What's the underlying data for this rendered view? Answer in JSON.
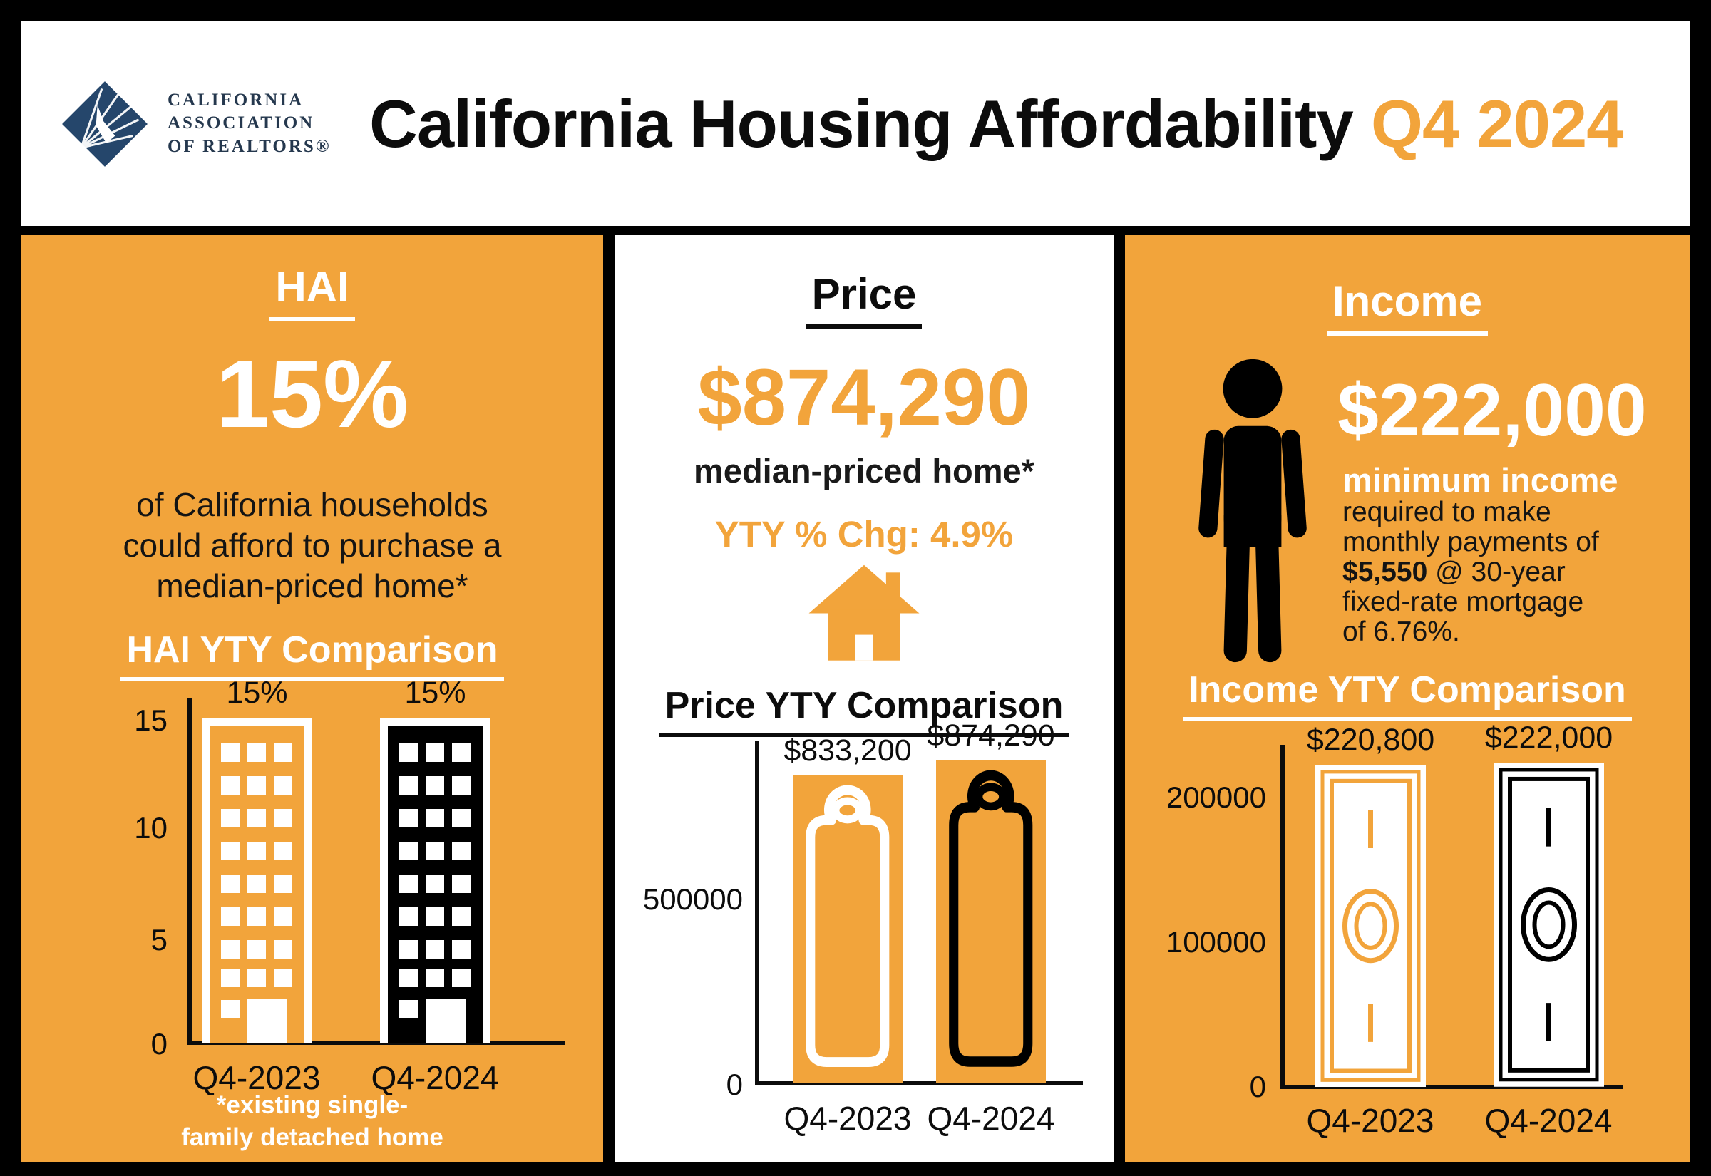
{
  "colors": {
    "orange": "#F2A43B",
    "black": "#000000",
    "white": "#FFFFFF",
    "navy": "#25384e"
  },
  "header": {
    "logo": {
      "lines": [
        "CALIFORNIA",
        "ASSOCIATION",
        "OF REALTORS®"
      ]
    },
    "title": "California Housing Affordability",
    "quarter": "Q4 2024"
  },
  "hai": {
    "title": "HAI",
    "big_value": "15%",
    "desc_lines": [
      "of California households",
      "could afford to purchase a",
      "median-priced home*"
    ],
    "footnote_lines": [
      "*existing single-",
      "family detached home"
    ]
  },
  "price": {
    "title": "Price",
    "big_value": "$874,290",
    "subtitle": "median-priced home*",
    "yty_change": "YTY % Chg: 4.9%"
  },
  "income": {
    "title": "Income",
    "big_value": "$222,000",
    "subtitle": "minimum income",
    "desc": {
      "l1": "required to make",
      "l2": "monthly payments of",
      "l3_bold": "$5,550",
      "l3_rest": " @ 30-year",
      "l4": "fixed-rate mortgage",
      "l5": "of 6.76%."
    }
  },
  "chart_data": [
    {
      "type": "bar",
      "title": "HAI YTY Comparison",
      "categories": [
        "Q4-2023",
        "Q4-2024"
      ],
      "values": [
        15,
        15
      ],
      "value_labels": [
        "15%",
        "15%"
      ],
      "yticks": [
        15,
        10,
        5,
        0
      ],
      "ylim": [
        0,
        15
      ],
      "axis_max": 15,
      "bar_icons": [
        "building-orange",
        "building-black"
      ],
      "legend": "none",
      "grid": false
    },
    {
      "type": "bar",
      "title": "Price YTY Comparison",
      "categories": [
        "Q4-2023",
        "Q4-2024"
      ],
      "values": [
        833200,
        874290
      ],
      "value_labels": [
        "$833,200",
        "$874,290"
      ],
      "yticks": [
        500000,
        0
      ],
      "ylim": [
        0,
        880000
      ],
      "axis_max": 880000,
      "bar_icons": [
        "price-tag-white",
        "price-tag-black"
      ],
      "legend": "none",
      "grid": false
    },
    {
      "type": "bar",
      "title": "Income YTY Comparison",
      "categories": [
        "Q4-2023",
        "Q4-2024"
      ],
      "values": [
        220800,
        222000
      ],
      "value_labels": [
        "$220,800",
        "$222,000"
      ],
      "yticks": [
        200000,
        100000,
        0
      ],
      "ylim": [
        0,
        222600
      ],
      "axis_max": 222600,
      "bar_icons": [
        "dollar-bill-orange",
        "dollar-bill-black"
      ],
      "legend": "none",
      "grid": false
    }
  ]
}
